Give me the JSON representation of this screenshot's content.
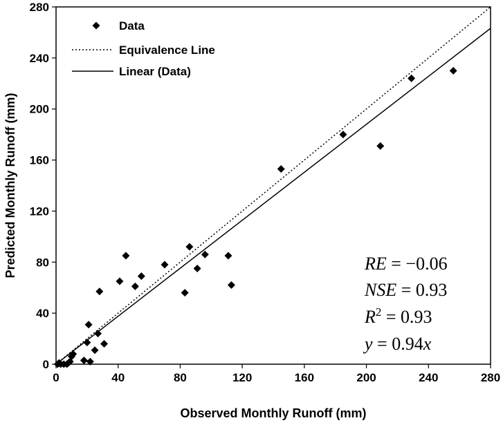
{
  "chart_data": {
    "type": "scatter",
    "xlabel": "Observed Monthly Runoff (mm)",
    "ylabel": "Predicted Monthly Runoff (mm)",
    "xlim": [
      0,
      280
    ],
    "ylim": [
      0,
      280
    ],
    "x_ticks": [
      0,
      40,
      80,
      120,
      160,
      200,
      240,
      280
    ],
    "y_ticks": [
      0,
      40,
      80,
      120,
      160,
      200,
      240,
      280
    ],
    "grid": false,
    "legend_position": "top-left",
    "legend": [
      {
        "label": "Data",
        "marker": "diamond"
      },
      {
        "label": "Equivalence Line",
        "style": "dotted"
      },
      {
        "label": "Linear (Data)",
        "style": "solid"
      }
    ],
    "series": [
      {
        "name": "Data",
        "points": [
          [
            1,
            0
          ],
          [
            2,
            1
          ],
          [
            3,
            0
          ],
          [
            5,
            0
          ],
          [
            7,
            0
          ],
          [
            8,
            1
          ],
          [
            9,
            2
          ],
          [
            10,
            6
          ],
          [
            11,
            8
          ],
          [
            18,
            3
          ],
          [
            20,
            17
          ],
          [
            21,
            31
          ],
          [
            22,
            2
          ],
          [
            25,
            11
          ],
          [
            27,
            24
          ],
          [
            28,
            57
          ],
          [
            31,
            16
          ],
          [
            41,
            65
          ],
          [
            45,
            85
          ],
          [
            51,
            61
          ],
          [
            55,
            69
          ],
          [
            70,
            78
          ],
          [
            83,
            56
          ],
          [
            86,
            92
          ],
          [
            91,
            75
          ],
          [
            96,
            86
          ],
          [
            111,
            85
          ],
          [
            113,
            62
          ],
          [
            145,
            153
          ],
          [
            185,
            180
          ],
          [
            209,
            171
          ],
          [
            229,
            224
          ],
          [
            256,
            230
          ]
        ]
      },
      {
        "name": "Equivalence Line",
        "line": [
          [
            0,
            0
          ],
          [
            280,
            280
          ]
        ]
      },
      {
        "name": "Linear (Data)",
        "slope": 0.94,
        "intercept": 0
      }
    ],
    "annotations": [
      {
        "var": "RE",
        "sup": "",
        "op": " = −0.06"
      },
      {
        "var": "NSE",
        "sup": "",
        "op": " = 0.93"
      },
      {
        "var": "R",
        "sup": "2",
        "op": " = 0.93"
      },
      {
        "var": "y",
        "sup": "",
        "op": " = 0.94x"
      }
    ]
  }
}
